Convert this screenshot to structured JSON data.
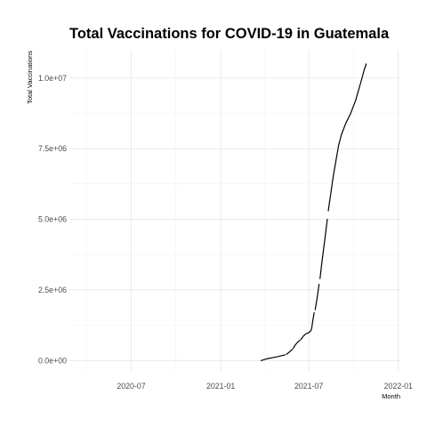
{
  "chart_data": {
    "type": "line",
    "title": "Total Vaccinations for COVID-19 in Guatemala",
    "xlabel": "Month",
    "ylabel": "Total Vaccinations",
    "x_ticks": [
      {
        "date": "2020-07-01",
        "label": "2020-07"
      },
      {
        "date": "2021-01-01",
        "label": "2021-01"
      },
      {
        "date": "2021-07-01",
        "label": "2021-07"
      },
      {
        "date": "2022-01-01",
        "label": "2022-01"
      }
    ],
    "x_minor_ticks": [
      "2020-04-01",
      "2020-10-01",
      "2021-04-01",
      "2021-10-01"
    ],
    "y_ticks": [
      {
        "value": 0,
        "label": "0.0e+00"
      },
      {
        "value": 2500000,
        "label": "2.5e+06"
      },
      {
        "value": 5000000,
        "label": "5.0e+06"
      },
      {
        "value": 7500000,
        "label": "7.5e+06"
      },
      {
        "value": 10000000,
        "label": "1.0e+07"
      }
    ],
    "y_minor_ticks": [
      1250000,
      3750000,
      6250000,
      8750000
    ],
    "xlim": [
      "2020-02-25",
      "2022-01-05"
    ],
    "ylim": [
      -400000,
      11000000
    ],
    "grid": true,
    "series": [
      {
        "segments": [
          [
            [
              "2021-03-25",
              0
            ],
            [
              "2021-04-05",
              60000
            ],
            [
              "2021-04-20",
              110000
            ],
            [
              "2021-05-01",
              150000
            ],
            [
              "2021-05-08",
              180000
            ],
            [
              "2021-05-13",
              200000
            ]
          ],
          [
            [
              "2021-05-16",
              220000
            ],
            [
              "2021-05-22",
              300000
            ],
            [
              "2021-05-28",
              400000
            ]
          ],
          [
            [
              "2021-05-30",
              430000
            ],
            [
              "2021-06-03",
              550000
            ],
            [
              "2021-06-08",
              650000
            ],
            [
              "2021-06-13",
              720000
            ]
          ],
          [
            [
              "2021-06-15",
              750000
            ],
            [
              "2021-06-20",
              870000
            ],
            [
              "2021-06-25",
              950000
            ],
            [
              "2021-06-30",
              980000
            ]
          ],
          [
            [
              "2021-07-01",
              990000
            ],
            [
              "2021-07-05",
              1050000
            ],
            [
              "2021-07-07",
              1150000
            ],
            [
              "2021-07-09",
              1400000
            ],
            [
              "2021-07-12",
              1700000
            ]
          ],
          [
            [
              "2021-07-14",
              1800000
            ],
            [
              "2021-07-18",
              2200000
            ],
            [
              "2021-07-22",
              2700000
            ]
          ],
          [
            [
              "2021-07-24",
              2900000
            ],
            [
              "2021-07-28",
              3500000
            ],
            [
              "2021-08-03",
              4300000
            ],
            [
              "2021-08-08",
              5000000
            ]
          ],
          [
            [
              "2021-08-10",
              5300000
            ],
            [
              "2021-08-15",
              5900000
            ],
            [
              "2021-08-20",
              6500000
            ],
            [
              "2021-08-25",
              7000000
            ],
            [
              "2021-08-31",
              7600000
            ],
            [
              "2021-09-06",
              8000000
            ],
            [
              "2021-09-15",
              8400000
            ],
            [
              "2021-09-25",
              8750000
            ],
            [
              "2021-10-05",
              9200000
            ],
            [
              "2021-10-15",
              9800000
            ],
            [
              "2021-10-23",
              10300000
            ],
            [
              "2021-10-27",
              10500000
            ]
          ]
        ]
      }
    ]
  }
}
